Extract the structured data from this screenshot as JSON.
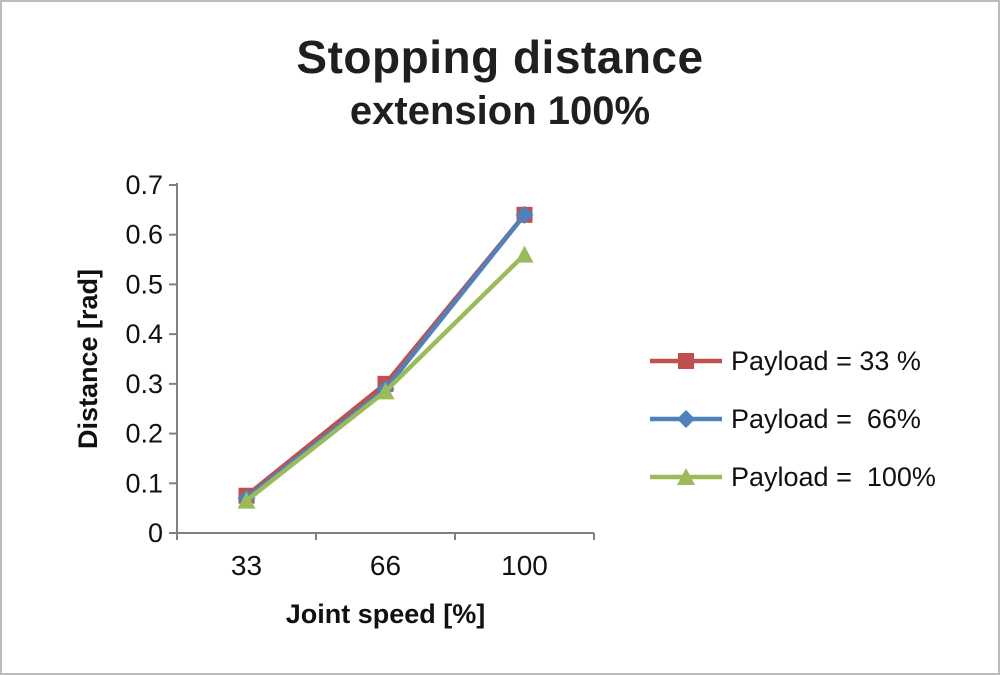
{
  "title": {
    "line1": "Stopping distance",
    "line2": "extension 100%"
  },
  "chart_data": {
    "type": "line",
    "categories": [
      "33",
      "66",
      "100"
    ],
    "series": [
      {
        "name": "Payload = 33 %",
        "color": "#C0504D",
        "marker": "square",
        "values": [
          0.075,
          0.3,
          0.64
        ]
      },
      {
        "name": "Payload =  66%",
        "color": "#4F81BD",
        "marker": "diamond",
        "values": [
          0.07,
          0.29,
          0.64
        ]
      },
      {
        "name": "Payload =  100%",
        "color": "#9BBB59",
        "marker": "triangle",
        "values": [
          0.065,
          0.285,
          0.56
        ]
      }
    ],
    "title": "Stopping distance extension 100%",
    "xlabel": "Joint speed [%]",
    "ylabel": "Distance [rad]",
    "ylim": [
      0,
      0.7
    ],
    "ytick_step": 0.1,
    "grid": false,
    "legend_position": "right",
    "axis_color": "#808080",
    "text_color": "#111111"
  }
}
